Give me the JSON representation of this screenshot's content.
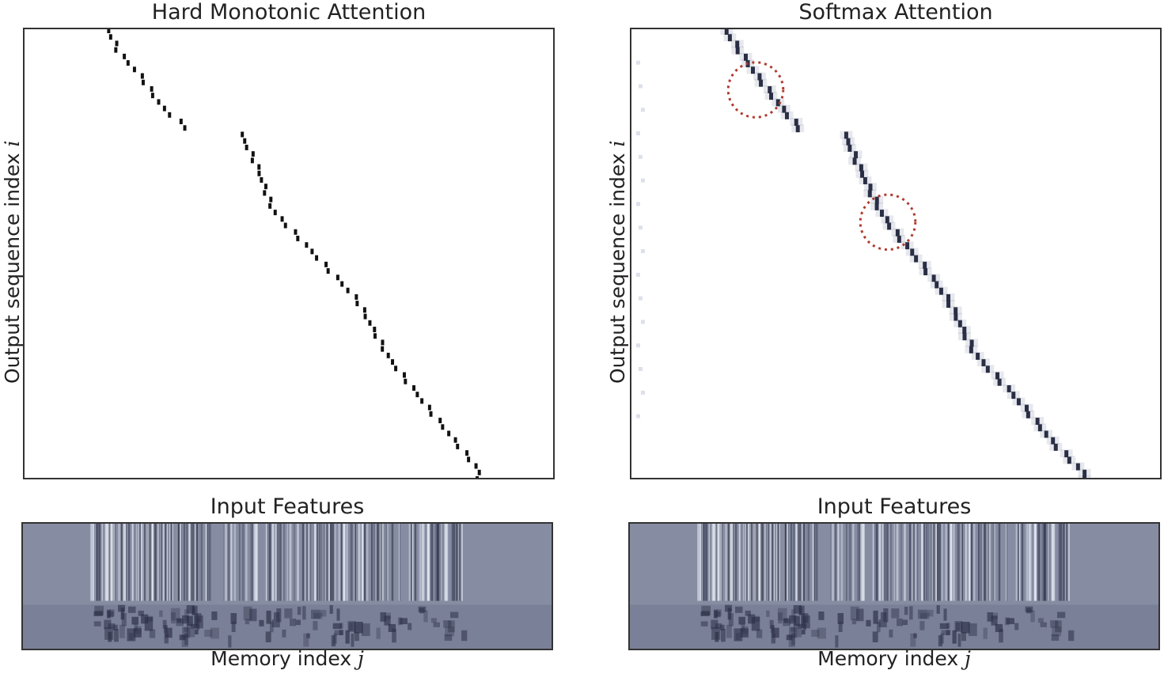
{
  "chart_data": [
    {
      "type": "heatmap",
      "title": "Hard Monotonic Attention",
      "ylabel": "Output sequence index",
      "ylabel_var": "i",
      "colormap": "bone_r",
      "alignment_path": [
        [
          0.16,
          0.0
        ],
        [
          0.18,
          0.05
        ],
        [
          0.22,
          0.1
        ],
        [
          0.26,
          0.17
        ],
        [
          0.31,
          0.22
        ],
        [
          0.41,
          0.23
        ],
        [
          0.44,
          0.3
        ],
        [
          0.47,
          0.4
        ],
        [
          0.55,
          0.5
        ],
        [
          0.63,
          0.6
        ],
        [
          0.69,
          0.73
        ],
        [
          0.77,
          0.85
        ],
        [
          0.86,
          0.98
        ]
      ],
      "gaps": [
        [
          0.31,
          0.41
        ]
      ],
      "annotations": []
    },
    {
      "type": "heatmap",
      "title": "Softmax Attention",
      "ylabel": "Output sequence index",
      "ylabel_var": "i",
      "colormap": "bone_r",
      "alignment_path": [
        [
          0.18,
          0.0
        ],
        [
          0.22,
          0.07
        ],
        [
          0.27,
          0.15
        ],
        [
          0.32,
          0.22
        ],
        [
          0.4,
          0.22
        ],
        [
          0.43,
          0.3
        ],
        [
          0.47,
          0.4
        ],
        [
          0.5,
          0.45
        ],
        [
          0.55,
          0.52
        ],
        [
          0.6,
          0.6
        ],
        [
          0.65,
          0.72
        ],
        [
          0.73,
          0.82
        ],
        [
          0.8,
          0.92
        ],
        [
          0.86,
          0.99
        ]
      ],
      "gaps": [
        [
          0.32,
          0.4
        ]
      ],
      "annotations": [
        {
          "type": "dotted-circle",
          "color": "#b03a2e"
        },
        {
          "type": "dotted-circle",
          "color": "#b03a2e"
        }
      ]
    }
  ],
  "features": [
    {
      "title": "Input Features",
      "xlabel": "Memory index",
      "xlabel_var": "j"
    },
    {
      "title": "Input Features",
      "xlabel": "Memory index",
      "xlabel_var": "j"
    }
  ]
}
